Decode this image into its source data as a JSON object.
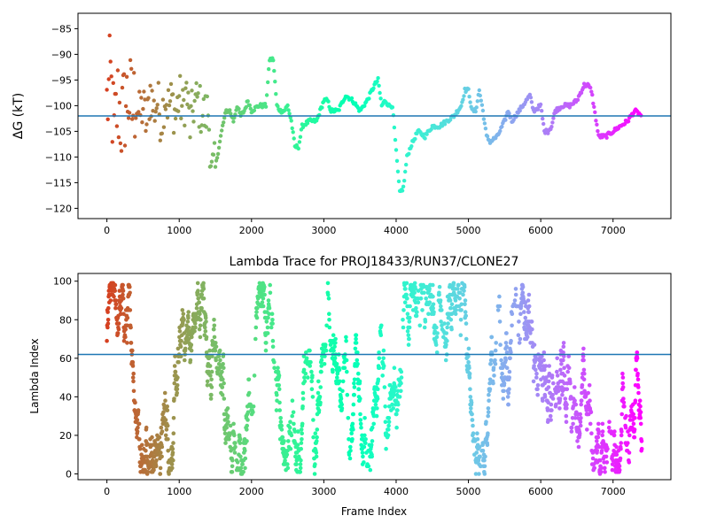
{
  "chart_data": [
    {
      "type": "scatter",
      "title": "",
      "xlabel": "",
      "ylabel": "ΔG (kT)",
      "xlim": [
        -400,
        7800
      ],
      "ylim": [
        -122,
        -82
      ],
      "x_ticks": [
        0,
        1000,
        2000,
        3000,
        4000,
        5000,
        6000,
        7000
      ],
      "y_ticks": [
        -85,
        -90,
        -95,
        -100,
        -105,
        -110,
        -115,
        -120
      ],
      "hline": -102,
      "hline_color": "#1f77b4",
      "colormap": "rainbow (red at start, violet at end)",
      "series": [
        {
          "x": [
            0,
            50,
            100,
            150,
            200,
            250,
            300,
            350,
            400,
            450,
            500,
            550,
            600,
            650,
            700,
            750,
            800,
            850,
            900,
            950,
            1000,
            1050,
            1100,
            1150,
            1200,
            1250,
            1300,
            1350,
            1400,
            1450,
            1500,
            1550,
            1600,
            1650,
            1700,
            1750,
            1800,
            1850,
            1900,
            1950,
            2000,
            2100,
            2200,
            2250,
            2300,
            2350,
            2400,
            2450,
            2500,
            2550,
            2600,
            2650,
            2700,
            2800,
            2900,
            3000,
            3050,
            3100,
            3200,
            3300,
            3400,
            3500,
            3600,
            3700,
            3750,
            3800,
            3850,
            3900,
            3950,
            4000,
            4050,
            4100,
            4150,
            4200,
            4300,
            4400,
            4500,
            4600,
            4700,
            4800,
            4900,
            4950,
            5000,
            5050,
            5100,
            5150,
            5200,
            5250,
            5300,
            5400,
            5500,
            5550,
            5600,
            5700,
            5800,
            5850,
            5900,
            6000,
            6050,
            6100,
            6150,
            6200,
            6300,
            6400,
            6500,
            6600,
            6650,
            6700,
            6800,
            6850,
            6900,
            7000,
            7100,
            7200,
            7300,
            7400
          ],
          "y": [
            -100,
            -95,
            -106,
            -99,
            -103,
            -100,
            -98,
            -101,
            -99,
            -102,
            -100,
            -104,
            -97,
            -101,
            -99,
            -103,
            -98,
            -100,
            -99,
            -102,
            -98,
            -101,
            -97,
            -104,
            -100,
            -99,
            -101,
            -102,
            -101,
            -113,
            -112,
            -108,
            -104,
            -101,
            -101,
            -103,
            -100,
            -102,
            -101,
            -99,
            -101,
            -100,
            -100,
            -91,
            -91,
            -100,
            -101,
            -101,
            -100,
            -103,
            -108,
            -108,
            -104,
            -103,
            -103,
            -99,
            -99,
            -101,
            -101,
            -98,
            -99,
            -101,
            -99,
            -96,
            -95,
            -100,
            -99,
            -100,
            -100,
            -109,
            -117,
            -116,
            -110,
            -108,
            -105,
            -106,
            -104,
            -104,
            -103,
            -102,
            -100,
            -97,
            -97,
            -101,
            -101,
            -97,
            -101,
            -106,
            -107,
            -106,
            -103,
            -101,
            -103,
            -101,
            -99,
            -98,
            -101,
            -100,
            -105,
            -105,
            -104,
            -101,
            -100,
            -100,
            -99,
            -96,
            -96,
            -97,
            -106,
            -106,
            -106,
            -105,
            -104,
            -103,
            -101,
            -102
          ]
        }
      ]
    },
    {
      "type": "scatter",
      "title": "Lambda Trace for PROJ18433/RUN37/CLONE27",
      "xlabel": "Frame Index",
      "ylabel": "Lambda Index",
      "xlim": [
        -400,
        7800
      ],
      "ylim": [
        -3,
        104
      ],
      "x_ticks": [
        0,
        1000,
        2000,
        3000,
        4000,
        5000,
        6000,
        7000
      ],
      "y_ticks": [
        0,
        20,
        40,
        60,
        80,
        100
      ],
      "hline": 62,
      "hline_color": "#1f77b4",
      "colormap": "rainbow (red at start, violet at end)",
      "x_range": [
        0,
        7400
      ],
      "y_range": [
        0,
        99
      ]
    }
  ]
}
